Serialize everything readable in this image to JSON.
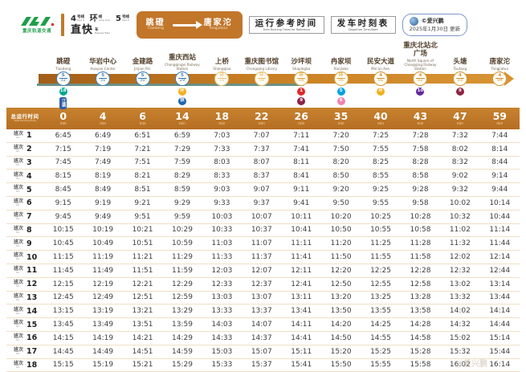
{
  "header": {
    "logo": {
      "mark": "CRT",
      "subtitle": "重庆轨道交通"
    },
    "lines": [
      {
        "num": "4",
        "suffix": "号线",
        "en": "Line 4"
      },
      {
        "num": "环",
        "suffix": "线",
        "en": "Loop Line"
      },
      {
        "num": "5",
        "suffix": "号线",
        "en": "Line 5"
      }
    ],
    "service": {
      "cn": "直快",
      "suffix": "车",
      "en": "Express Train"
    },
    "route_pill": {
      "from_cn": "跳磴",
      "from_en": "Tiaodeng",
      "to_cn": "唐家沱",
      "to_en": "Tangjiatuo"
    },
    "ref_box": {
      "cn": "运行参考时间",
      "en": "Train Running Times for Reference"
    },
    "dep_box": {
      "cn": "发车时刻表",
      "en": "Departure Time-Table"
    },
    "credit": {
      "name": "©爱兴鹏",
      "date": "2025年1月30日 更新"
    }
  },
  "diagram": {
    "stations": [
      {
        "cn": "跳磴",
        "en": "Tiaodeng",
        "marker": {
          "line": "5",
          "num": "32",
          "color": "#3A7CBE"
        },
        "badges": [
          {
            "text": "18",
            "bg": "#00A88E",
            "shape": "circle"
          },
          {
            "text": "江跳",
            "bg": "#2F5FA8",
            "shape": "vrect"
          }
        ]
      },
      {
        "cn": "华岩中心",
        "en": "Huayan Center",
        "marker": {
          "line": "5",
          "num": "31",
          "color": "#3A7CBE"
        },
        "badges": []
      },
      {
        "cn": "金建路",
        "en": "Jinjian Rd.",
        "marker": {
          "line": "5",
          "num": "30",
          "color": "#3A7CBE"
        },
        "badges": []
      },
      {
        "cn": "重庆西站",
        "en": "Chongqingxi Railway Station",
        "marker": {
          "line": "5",
          "num": "29",
          "color": "#3A7CBE"
        },
        "badges": [
          {
            "text": "环",
            "bg": "#F2B01F",
            "shape": "circle"
          },
          {
            "text": "铁",
            "bg": "#1C64B0",
            "shape": "circle"
          }
        ]
      },
      {
        "cn": "上桥",
        "en": "Shangqiao",
        "marker": {
          "line": "环",
          "num": "10",
          "color": "#EBC072"
        },
        "badges": []
      },
      {
        "cn": "重庆图书馆",
        "en": "Chongqing Library",
        "marker": {
          "line": "环",
          "num": "09",
          "color": "#EBC072"
        },
        "badges": []
      },
      {
        "cn": "沙坪坝",
        "en": "Shapingba",
        "marker": {
          "line": "环",
          "num": "08",
          "color": "#DFA63F"
        },
        "badges": [
          {
            "text": "1",
            "bg": "#DD2B2B",
            "shape": "circle"
          },
          {
            "text": "9",
            "bg": "#8E2345",
            "shape": "circle"
          }
        ]
      },
      {
        "cn": "冉家坝",
        "en": "Ranjiaba",
        "marker": {
          "line": "环",
          "num": "06",
          "color": "#DFA63F"
        },
        "badges": [
          {
            "text": "5",
            "bg": "#00A2E0",
            "shape": "circle"
          },
          {
            "text": "6",
            "bg": "#EF82B1",
            "shape": "circle"
          }
        ]
      },
      {
        "cn": "民安大道",
        "en": "Min'an Ave.",
        "marker": {
          "line": "4",
          "num": "01",
          "color": "#D19434"
        },
        "badges": [
          {
            "text": "环",
            "bg": "#F2B01F",
            "shape": "circle"
          }
        ]
      },
      {
        "cn": "重庆北站北广场",
        "en": "North Square of Chongqing Railway Station",
        "marker": {
          "line": "4",
          "num": "02",
          "color": "#D19434"
        },
        "badges": [
          {
            "text": "10",
            "bg": "#63269B",
            "shape": "circle"
          }
        ]
      },
      {
        "cn": "头塘",
        "en": "Toutang",
        "marker": {
          "line": "4",
          "num": "03",
          "color": "#D19434"
        },
        "badges": [
          {
            "text": "9",
            "bg": "#8E2345",
            "shape": "circle"
          }
        ]
      },
      {
        "cn": "唐家沱",
        "en": "Tangjiatuo",
        "marker": {
          "line": "4",
          "num": "04",
          "color": "#D19434"
        },
        "badges": []
      }
    ]
  },
  "table": {
    "corner": {
      "cn": "总运行时间",
      "en": "Total Running Time"
    },
    "min_label": "min",
    "offsets": [
      "0",
      "4",
      "6",
      "14",
      "18",
      "22",
      "26",
      "35",
      "40",
      "43",
      "47",
      "59"
    ],
    "row_label": {
      "cn": "班次",
      "en": "No."
    },
    "rows": [
      {
        "no": "1",
        "times": [
          "6:45",
          "6:49",
          "6:51",
          "6:59",
          "7:03",
          "7:07",
          "7:11",
          "7:20",
          "7:25",
          "7:28",
          "7:32",
          "7:44"
        ]
      },
      {
        "no": "2",
        "times": [
          "7:15",
          "7:19",
          "7:21",
          "7:29",
          "7:33",
          "7:37",
          "7:41",
          "7:50",
          "7:55",
          "7:58",
          "8:02",
          "8:14"
        ]
      },
      {
        "no": "3",
        "times": [
          "7:45",
          "7:49",
          "7:51",
          "7:59",
          "8:03",
          "8:07",
          "8:11",
          "8:20",
          "8:25",
          "8:28",
          "8:32",
          "8:44"
        ]
      },
      {
        "no": "4",
        "times": [
          "8:15",
          "8:19",
          "8:21",
          "8:29",
          "8:33",
          "8:37",
          "8:41",
          "8:50",
          "8:55",
          "8:58",
          "9:02",
          "9:14"
        ]
      },
      {
        "no": "5",
        "times": [
          "8:45",
          "8:49",
          "8:51",
          "8:59",
          "9:03",
          "9:07",
          "9:11",
          "9:20",
          "9:25",
          "9:28",
          "9:32",
          "9:44"
        ]
      },
      {
        "no": "6",
        "times": [
          "9:15",
          "9:19",
          "9:21",
          "9:29",
          "9:33",
          "9:37",
          "9:41",
          "9:50",
          "9:55",
          "9:58",
          "10:02",
          "10:14"
        ]
      },
      {
        "no": "7",
        "times": [
          "9:45",
          "9:49",
          "9:51",
          "9:59",
          "10:03",
          "10:07",
          "10:11",
          "10:20",
          "10:25",
          "10:28",
          "10:32",
          "10:44"
        ]
      },
      {
        "no": "8",
        "times": [
          "10:15",
          "10:19",
          "10:21",
          "10:29",
          "10:33",
          "10:37",
          "10:41",
          "10:50",
          "10:55",
          "10:58",
          "11:02",
          "11:14"
        ]
      },
      {
        "no": "9",
        "times": [
          "10:45",
          "10:49",
          "10:51",
          "10:59",
          "11:03",
          "11:07",
          "11:11",
          "11:20",
          "11:25",
          "11:28",
          "11:32",
          "11:44"
        ]
      },
      {
        "no": "10",
        "times": [
          "11:15",
          "11:19",
          "11:21",
          "11:29",
          "11:33",
          "11:37",
          "11:41",
          "11:50",
          "11:55",
          "11:58",
          "12:02",
          "12:14"
        ]
      },
      {
        "no": "11",
        "times": [
          "11:45",
          "11:49",
          "11:51",
          "11:59",
          "12:03",
          "12:07",
          "12:11",
          "12:20",
          "12:25",
          "12:28",
          "12:32",
          "12:44"
        ]
      },
      {
        "no": "12",
        "times": [
          "12:15",
          "12:19",
          "12:21",
          "12:29",
          "12:33",
          "12:37",
          "12:41",
          "12:50",
          "12:55",
          "12:58",
          "13:02",
          "13:14"
        ]
      },
      {
        "no": "13",
        "times": [
          "12:45",
          "12:49",
          "12:51",
          "12:59",
          "13:03",
          "13:07",
          "13:11",
          "13:20",
          "13:25",
          "13:28",
          "13:32",
          "13:44"
        ]
      },
      {
        "no": "14",
        "times": [
          "13:15",
          "13:19",
          "13:21",
          "13:29",
          "13:33",
          "13:37",
          "13:41",
          "13:50",
          "13:55",
          "13:58",
          "14:02",
          "14:14"
        ]
      },
      {
        "no": "15",
        "times": [
          "13:45",
          "13:49",
          "13:51",
          "13:59",
          "14:03",
          "14:07",
          "14:11",
          "14:20",
          "14:25",
          "14:28",
          "14:32",
          "14:44"
        ]
      },
      {
        "no": "16",
        "times": [
          "14:15",
          "14:19",
          "14:21",
          "14:29",
          "14:33",
          "14:37",
          "14:41",
          "14:50",
          "14:55",
          "14:58",
          "15:02",
          "15:14"
        ]
      },
      {
        "no": "17",
        "times": [
          "14:45",
          "14:49",
          "14:51",
          "14:59",
          "15:03",
          "15:07",
          "15:11",
          "15:20",
          "15:25",
          "15:28",
          "15:32",
          "15:44"
        ]
      },
      {
        "no": "18",
        "times": [
          "15:15",
          "15:19",
          "15:21",
          "15:29",
          "15:33",
          "15:37",
          "15:41",
          "15:50",
          "15:55",
          "15:58",
          "16:02",
          "16:14"
        ]
      }
    ]
  },
  "watermark": "@爱兴鹏",
  "colors": {
    "accent_orange": "#BE762A",
    "stripe_teal": "#6C9187",
    "bar_dark": "#A35E18",
    "bar_light": "#D89434"
  }
}
